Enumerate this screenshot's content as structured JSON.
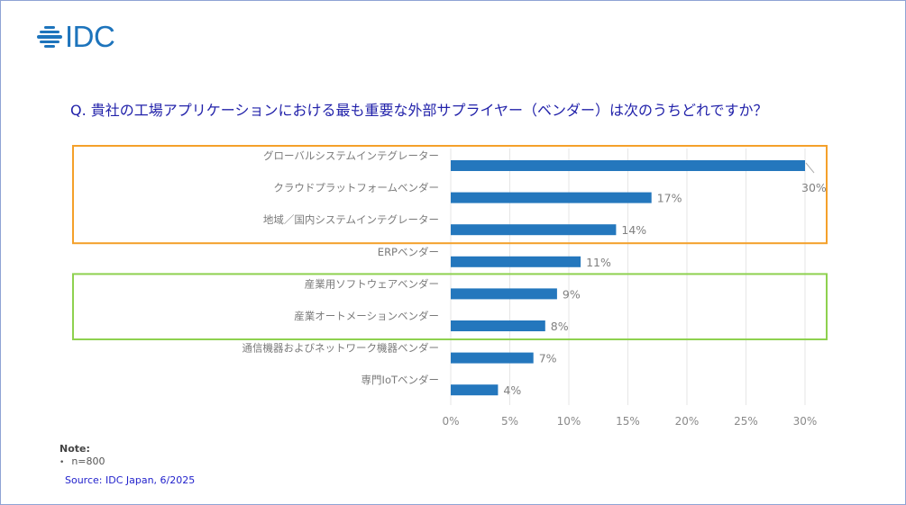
{
  "logo": {
    "text": "IDC",
    "icon": "idc-globe-icon",
    "color": "#1d74bc"
  },
  "question": "Q. 貴社の工場アプリケーションにおける最も重要な外部サプライヤー（ベンダー）は次のうちどれですか？",
  "note": {
    "title": "Note:",
    "items": [
      "n=800"
    ]
  },
  "source": "Source: IDC Japan, 6/2025",
  "colors": {
    "bar": "#2477bd",
    "highlight_top": "#f4a02a",
    "highlight_middle": "#8ed14f",
    "question": "#2222aa",
    "source": "#2222cc"
  },
  "highlights": [
    {
      "name": "top-group",
      "color": "#f4a02a",
      "categories": [
        0,
        1,
        2
      ]
    },
    {
      "name": "industrial-group",
      "color": "#8ed14f",
      "categories": [
        4,
        5
      ]
    }
  ],
  "chart_data": {
    "type": "bar",
    "orientation": "horizontal",
    "title": "Q. 貴社の工場アプリケーションにおける最も重要な外部サプライヤー（ベンダー）は次のうちどれですか？",
    "categories": [
      "グローバルシステムインテグレーター",
      "クラウドプラットフォームベンダー",
      "地域／国内システムインテグレーター",
      "ERPベンダー",
      "産業用ソフトウェアベンダー",
      "産業オートメーションベンダー",
      "通信機器およびネットワーク機器ベンダー",
      "専門IoTベンダー"
    ],
    "values": [
      30,
      17,
      14,
      11,
      9,
      8,
      7,
      4
    ],
    "data_labels": [
      "30%",
      "17%",
      "14%",
      "11%",
      "9%",
      "8%",
      "7%",
      "4%"
    ],
    "xlabel": "",
    "ylabel": "",
    "xlim": [
      0,
      30
    ],
    "xticks": [
      0,
      5,
      10,
      15,
      20,
      25,
      30
    ],
    "xtick_labels": [
      "0%",
      "5%",
      "10%",
      "15%",
      "20%",
      "25%",
      "30%"
    ],
    "grid": true,
    "legend": "none"
  }
}
